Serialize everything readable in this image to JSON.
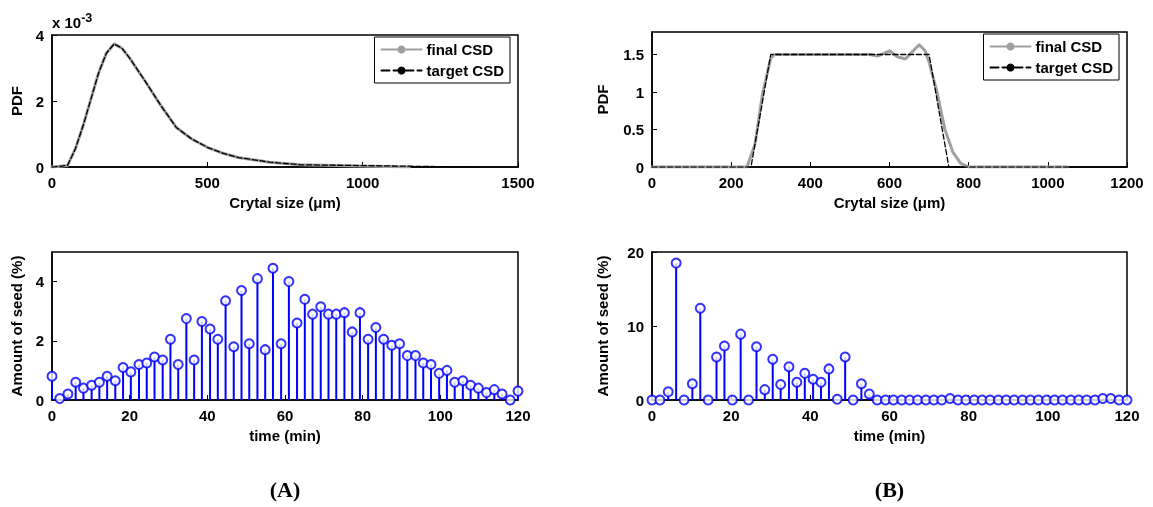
{
  "chart_data": [
    {
      "type": "line",
      "xlabel": "Crytal size (μm)",
      "ylabel": "PDF",
      "annotations": [
        "x 10$^{-3}$"
      ],
      "xlim": [
        0,
        1500
      ],
      "xticks": [
        0,
        500,
        1000,
        1500
      ],
      "ylim": [
        0,
        4
      ],
      "yticks": [
        0,
        2,
        4
      ],
      "grid": false,
      "legend": "top right",
      "marker": "none",
      "series": [
        {
          "name": "final CSD",
          "color": "#a0a0a0",
          "line_style": "solid",
          "x": [
            0,
            50,
            75,
            100,
            125,
            150,
            175,
            200,
            225,
            250,
            300,
            350,
            400,
            450,
            500,
            550,
            600,
            700,
            800,
            1150
          ],
          "values": [
            0,
            0.05,
            0.55,
            1.25,
            2.05,
            2.85,
            3.45,
            3.73,
            3.6,
            3.3,
            2.6,
            1.87,
            1.2,
            0.85,
            0.6,
            0.42,
            0.29,
            0.15,
            0.07,
            0
          ]
        },
        {
          "name": "target CSD",
          "color": "#000000",
          "line_style": "dashed",
          "x": [
            0,
            50,
            75,
            100,
            125,
            150,
            175,
            200,
            225,
            250,
            300,
            350,
            400,
            450,
            500,
            550,
            600,
            700,
            800,
            1375
          ],
          "values": [
            0,
            0.05,
            0.55,
            1.25,
            2.05,
            2.85,
            3.45,
            3.73,
            3.6,
            3.3,
            2.6,
            1.87,
            1.2,
            0.85,
            0.6,
            0.42,
            0.29,
            0.15,
            0.07,
            0
          ]
        }
      ]
    },
    {
      "type": "line",
      "xlabel": "Crytal size (μm)",
      "ylabel": "PDF",
      "xlim": [
        0,
        1200
      ],
      "xticks": [
        0,
        200,
        400,
        600,
        800,
        1000,
        1200
      ],
      "ylim": [
        0,
        1.8
      ],
      "yticks": [
        0,
        0.5,
        1,
        1.5
      ],
      "grid": false,
      "legend": "top right",
      "marker": "none",
      "series": [
        {
          "name": "final CSD",
          "color": "#a0a0a0",
          "line_style": "solid",
          "x": [
            0,
            240,
            260,
            280,
            300,
            310,
            400,
            500,
            550,
            570,
            600,
            620,
            640,
            660,
            675,
            690,
            700,
            720,
            740,
            760,
            780,
            800,
            1050
          ],
          "values": [
            0,
            0,
            0.3,
            1.0,
            1.45,
            1.5,
            1.5,
            1.5,
            1.5,
            1.48,
            1.55,
            1.47,
            1.44,
            1.55,
            1.63,
            1.55,
            1.4,
            1.0,
            0.5,
            0.2,
            0.05,
            0,
            0
          ]
        },
        {
          "name": "target CSD",
          "color": "#000000",
          "line_style": "dashed",
          "x": [
            0,
            250,
            300,
            700,
            750,
            1200
          ],
          "values": [
            0,
            0,
            1.5,
            1.5,
            0,
            0
          ]
        }
      ]
    },
    {
      "type": "lollipop",
      "xlabel": "time (min)",
      "ylabel": "Amount of seed (%)",
      "annotations": [
        "(A)"
      ],
      "xlim": [
        0,
        120
      ],
      "xticks": [
        0,
        20,
        40,
        60,
        80,
        100,
        120
      ],
      "ylim": [
        0,
        5
      ],
      "yticks": [
        0,
        2,
        4
      ],
      "grid": false,
      "marker": "circle",
      "x": [
        0,
        2,
        4.1,
        6.1,
        8.1,
        10.2,
        12.2,
        14.2,
        16.3,
        18.3,
        20.3,
        22.4,
        24.4,
        26.4,
        28.5,
        30.5,
        32.5,
        34.6,
        36.6,
        38.6,
        40.7,
        42.7,
        44.7,
        46.8,
        48.8,
        50.8,
        52.9,
        54.9,
        56.9,
        59,
        61,
        63.1,
        65.1,
        67.1,
        69.2,
        71.2,
        73.2,
        75.3,
        77.3,
        79.3,
        81.4,
        83.4,
        85.4,
        87.5,
        89.5,
        91.5,
        93.6,
        95.6,
        97.6,
        99.7,
        101.7,
        103.7,
        105.8,
        107.8,
        109.8,
        111.9,
        113.9,
        115.9,
        118,
        120
      ],
      "series": [
        {
          "color": "#0000ff",
          "values": [
            0.8,
            0.05,
            0.2,
            0.6,
            0.4,
            0.5,
            0.6,
            0.8,
            0.65,
            1.1,
            0.95,
            1.2,
            1.25,
            1.45,
            1.35,
            2.05,
            1.2,
            2.75,
            1.35,
            2.65,
            2.4,
            2.05,
            3.35,
            1.8,
            3.7,
            1.9,
            4.1,
            1.7,
            4.45,
            1.9,
            4.0,
            2.6,
            3.4,
            2.9,
            3.15,
            2.9,
            2.9,
            2.95,
            2.3,
            2.95,
            2.05,
            2.45,
            2.05,
            1.85,
            1.9,
            1.5,
            1.5,
            1.25,
            1.2,
            0.9,
            1.0,
            0.6,
            0.65,
            0.5,
            0.4,
            0.25,
            0.35,
            0.2,
            0.0,
            0.3
          ]
        }
      ]
    },
    {
      "type": "lollipop",
      "xlabel": "time (min)",
      "ylabel": "Amount of seed (%)",
      "annotations": [
        "(B)"
      ],
      "xlim": [
        0,
        120
      ],
      "xticks": [
        0,
        20,
        40,
        60,
        80,
        100,
        120
      ],
      "ylim": [
        0,
        20
      ],
      "yticks": [
        0,
        10,
        20
      ],
      "grid": false,
      "marker": "circle",
      "x": [
        0,
        2,
        4.1,
        6.1,
        8.1,
        10.2,
        12.2,
        14.2,
        16.3,
        18.3,
        20.3,
        22.4,
        24.4,
        26.4,
        28.5,
        30.5,
        32.5,
        34.6,
        36.6,
        38.6,
        40.7,
        42.7,
        44.7,
        46.8,
        48.8,
        50.8,
        52.9,
        54.9,
        56.9,
        59,
        61,
        63.1,
        65.1,
        67.1,
        69.2,
        71.2,
        73.2,
        75.3,
        77.3,
        79.3,
        81.4,
        83.4,
        85.4,
        87.5,
        89.5,
        91.5,
        93.6,
        95.6,
        97.6,
        99.7,
        101.7,
        103.7,
        105.8,
        107.8,
        109.8,
        111.9,
        113.9,
        115.9,
        118,
        120
      ],
      "series": [
        {
          "color": "#0000ff",
          "values": [
            0,
            0,
            1.1,
            18.5,
            0,
            2.2,
            12.4,
            0,
            5.8,
            7.3,
            0,
            8.9,
            0,
            7.2,
            1.4,
            5.5,
            2.1,
            4.5,
            2.4,
            3.6,
            2.8,
            2.4,
            4.2,
            0.1,
            5.8,
            0,
            2.2,
            0.8,
            0,
            0,
            0,
            0,
            0,
            0,
            0,
            0,
            0,
            0.2,
            0,
            0,
            0,
            0,
            0,
            0,
            0,
            0,
            0,
            0,
            0,
            0,
            0,
            0,
            0,
            0,
            0,
            0,
            0.2,
            0.2,
            0,
            0
          ]
        }
      ]
    }
  ]
}
